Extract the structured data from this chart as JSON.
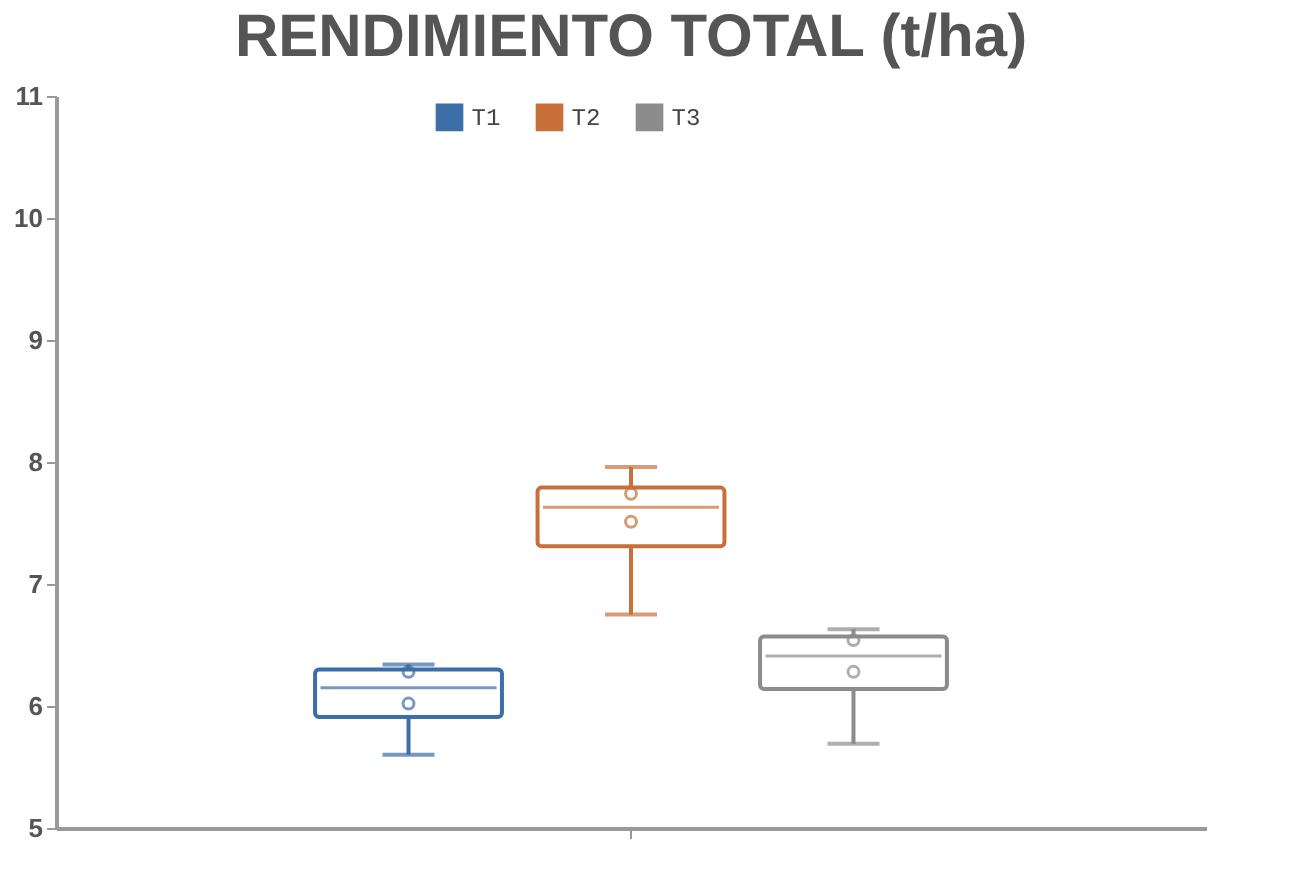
{
  "chart_data": {
    "type": "box",
    "title": "RENDIMIENTO TOTAL (t/ha)",
    "categories": [
      null
    ],
    "series": [
      {
        "name": "T1",
        "color": "#3c6ea8",
        "boxes": [
          {
            "low": 5.6,
            "q1": 5.91,
            "median": 6.15,
            "q3": 6.3,
            "high": 6.34,
            "mean": 6.02,
            "outliers": [
              6.28
            ]
          }
        ]
      },
      {
        "name": "T2",
        "color": "#c8703a",
        "boxes": [
          {
            "low": 6.75,
            "q1": 7.31,
            "median": 7.63,
            "q3": 7.79,
            "high": 7.96,
            "mean": 7.51,
            "outliers": [
              7.74
            ]
          }
        ]
      },
      {
        "name": "T3",
        "color": "#8c8c8c",
        "boxes": [
          {
            "low": 5.69,
            "q1": 6.14,
            "median": 6.41,
            "q3": 6.57,
            "high": 6.63,
            "mean": 6.28,
            "outliers": [
              6.54
            ]
          }
        ]
      }
    ],
    "ylim": [
      5,
      11
    ],
    "yticks": [
      5,
      6,
      7,
      8,
      9,
      10,
      11
    ],
    "legend": "top",
    "grid": false,
    "tick_labels": "y",
    "marker": "circle"
  }
}
